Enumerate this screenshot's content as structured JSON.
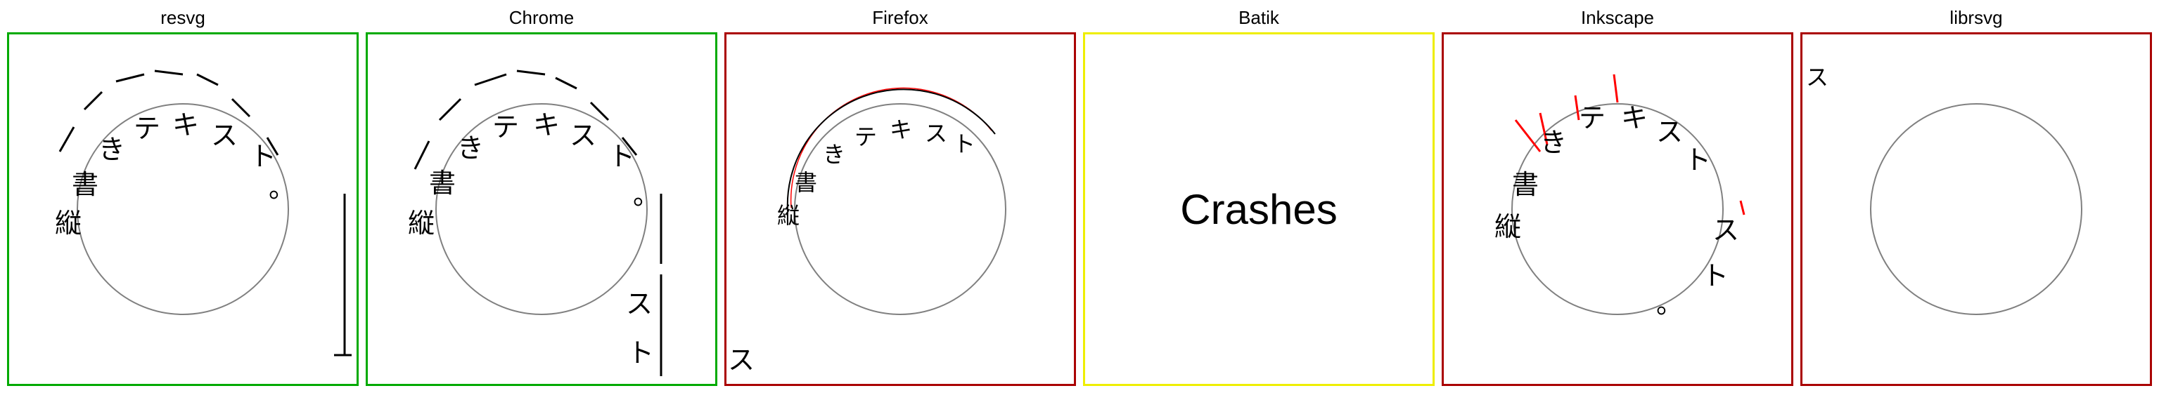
{
  "panels": [
    {
      "name": "resvg",
      "status_color": "#00aa00"
    },
    {
      "name": "Chrome",
      "status_color": "#00aa00"
    },
    {
      "name": "Firefox",
      "status_color": "#aa0000"
    },
    {
      "name": "Batik",
      "status_color": "#eeee00",
      "message": "Crashes"
    },
    {
      "name": "Inkscape",
      "status_color": "#aa0000"
    },
    {
      "name": "librsvg",
      "status_color": "#aa0000"
    }
  ],
  "sample_text": "縦書きテキスト。",
  "colors": {
    "circle": "#808080",
    "glyph": "#000000",
    "debug_mark": "#ff0000",
    "text_path_line": "#000000"
  }
}
